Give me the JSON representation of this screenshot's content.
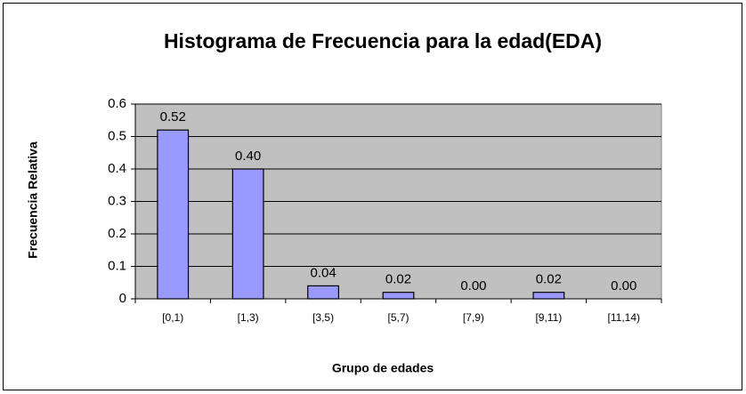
{
  "chart_data": {
    "type": "bar",
    "title": "Histograma de Frecuencia para la edad(EDA)",
    "x_label": "Grupo de edades",
    "y_label": "Frecuencia Relativa",
    "categories": [
      "[0,1)",
      "[1,3)",
      "[3,5)",
      "[5,7)",
      "[7,9)",
      "[9,11)",
      "[11,14)"
    ],
    "values": [
      0.52,
      0.4,
      0.04,
      0.02,
      0.0,
      0.02,
      0.0
    ],
    "value_labels": [
      "0.52",
      "0.40",
      "0.04",
      "0.02",
      "0.00",
      "0.02",
      "0.00"
    ],
    "color": "#9999ff",
    "ylim": [
      0,
      0.6
    ],
    "yticks": [
      0,
      0.1,
      0.2,
      0.3,
      0.4,
      0.5,
      0.6
    ],
    "grid": true
  }
}
